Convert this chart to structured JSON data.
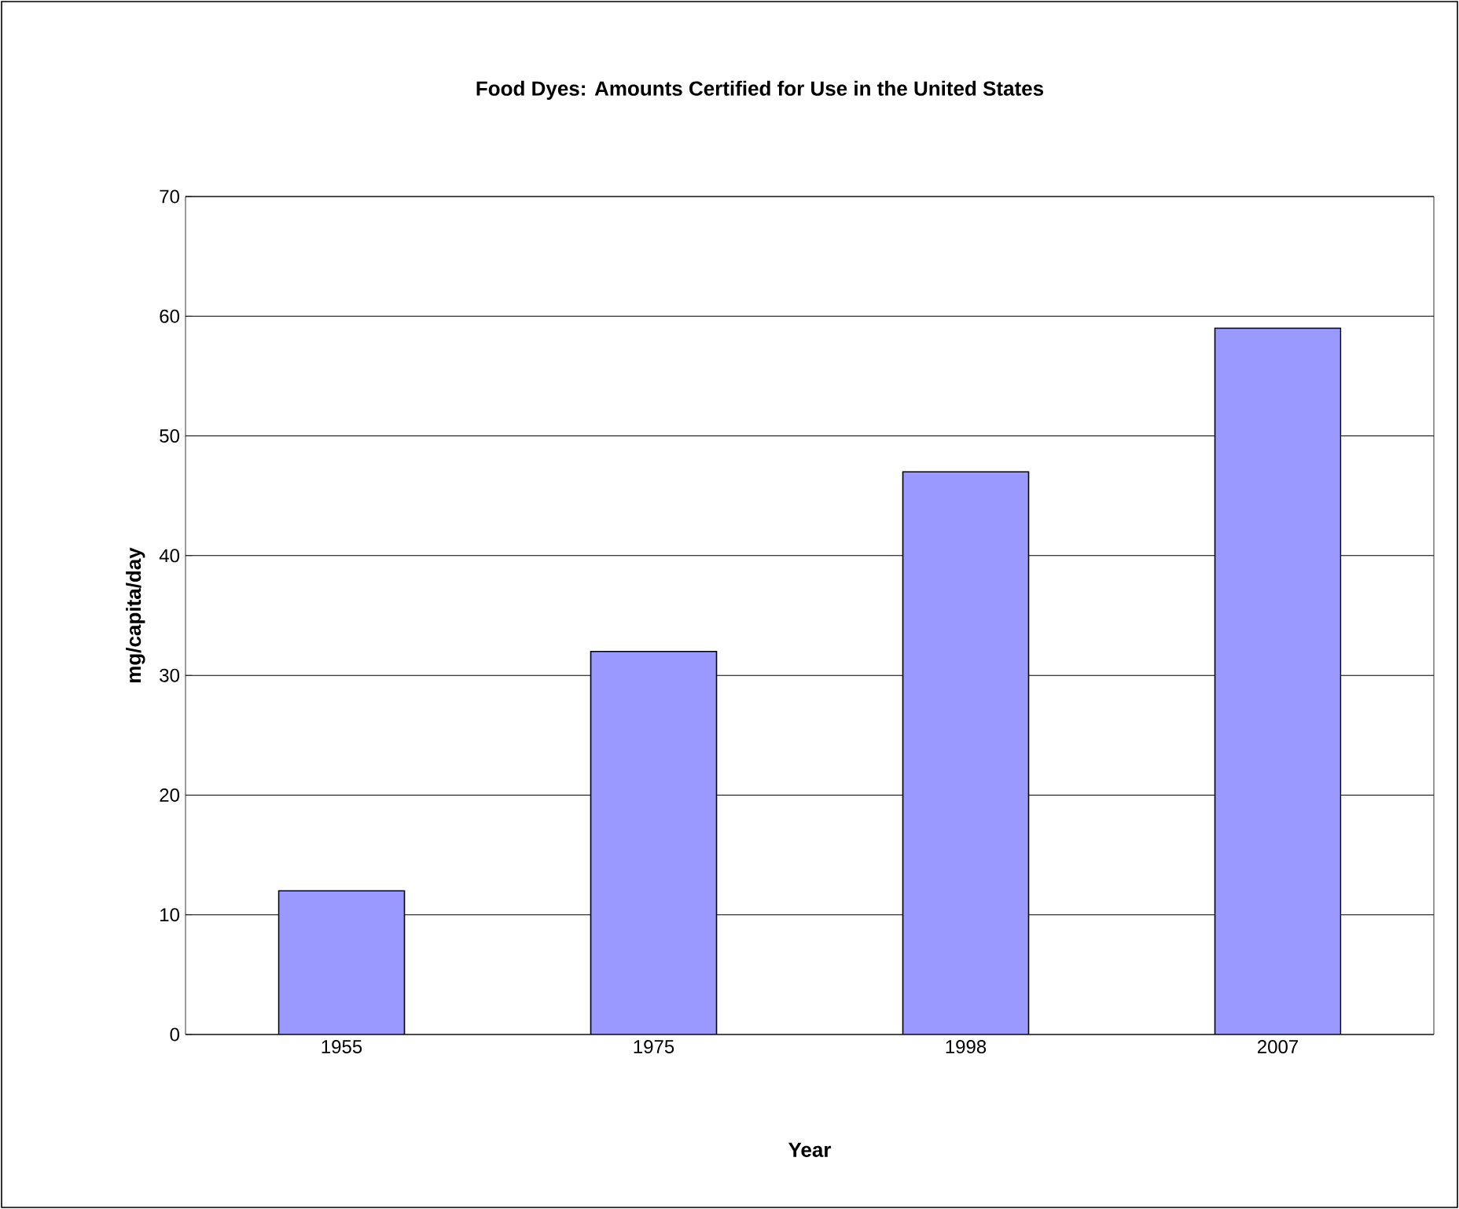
{
  "chart_data": {
    "type": "bar",
    "title": "Food Dyes: Amounts Certified for Use in the United States",
    "xlabel": "Year",
    "ylabel": "mg/capita/day",
    "categories": [
      "1955",
      "1975",
      "1998",
      "2007"
    ],
    "values": [
      12,
      32,
      47,
      59
    ],
    "color": "#9999ff",
    "ylim": [
      0,
      70
    ],
    "yticks": [
      0,
      10,
      20,
      30,
      40,
      50,
      60,
      70
    ],
    "grid": "y"
  }
}
